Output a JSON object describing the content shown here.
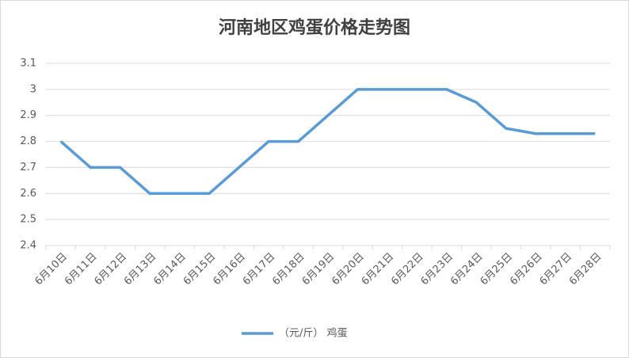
{
  "chart_data": {
    "type": "line",
    "title": "河南地区鸡蛋价格走势图",
    "categories": [
      "6月10日",
      "6月11日",
      "6月12日",
      "6月13日",
      "6月14日",
      "6月15日",
      "6月16日",
      "6月17日",
      "6月18日",
      "6月19日",
      "6月20日",
      "6月21日",
      "6月22日",
      "6月23日",
      "6月24日",
      "6月25日",
      "6月26日",
      "6月27日",
      "6月28日"
    ],
    "series": [
      {
        "name": "（元/斤） 鸡蛋",
        "color": "#5b9bd5",
        "values": [
          2.8,
          2.7,
          2.7,
          2.6,
          2.6,
          2.6,
          2.7,
          2.8,
          2.8,
          2.9,
          3.0,
          3.0,
          3.0,
          3.0,
          2.95,
          2.85,
          2.83,
          2.83,
          2.83
        ]
      }
    ],
    "ylim": [
      2.4,
      3.1
    ],
    "yticks": [
      2.4,
      2.5,
      2.6,
      2.7,
      2.8,
      2.9,
      3,
      3.1
    ],
    "grid": true,
    "legend": "bottom"
  }
}
